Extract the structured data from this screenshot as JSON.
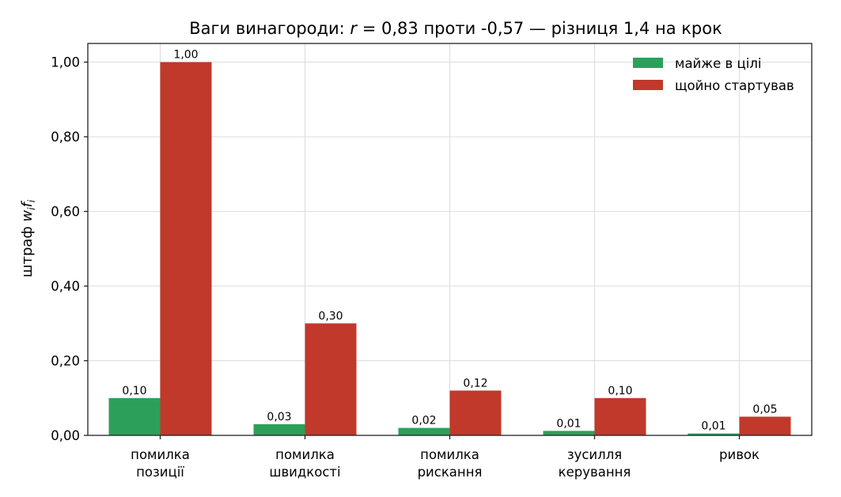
{
  "chart_data": {
    "type": "bar",
    "title_prefix": "Ваги винагороди: ",
    "title_var": "r",
    "title_suffix": " = 0,83 проти -0,57 — різниця 1,4 на крок",
    "ylabel_prefix": "штраф ",
    "ylabel_w": "w",
    "ylabel_i1": "i",
    "ylabel_f": "f",
    "ylabel_i2": "i",
    "categories": [
      [
        "помилка",
        "позиції"
      ],
      [
        "помилка",
        "швидкості"
      ],
      [
        "помилка",
        "рискання"
      ],
      [
        "зусилля",
        "керування"
      ],
      [
        "ривок",
        ""
      ]
    ],
    "series": [
      {
        "name": "майже в цілі",
        "color": "#2ca05a",
        "values": [
          0.1,
          0.03,
          0.02,
          0.012,
          0.005
        ],
        "labels": [
          "0,10",
          "0,03",
          "0,02",
          "0,01",
          "0,01"
        ]
      },
      {
        "name": "щойно стартував",
        "color": "#c0392b",
        "values": [
          1.0,
          0.3,
          0.12,
          0.1,
          0.05
        ],
        "labels": [
          "1,00",
          "0,30",
          "0,12",
          "0,10",
          "0,05"
        ]
      }
    ],
    "ylim": [
      0,
      1.05
    ],
    "yticks": [
      0,
      0.2,
      0.4,
      0.6,
      0.8,
      1.0
    ],
    "ytick_labels": [
      "0,00",
      "0,20",
      "0,40",
      "0,60",
      "0,80",
      "1,00"
    ],
    "grid": true,
    "legend_position": "top-right"
  }
}
